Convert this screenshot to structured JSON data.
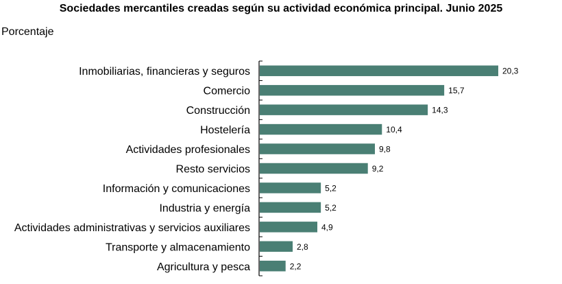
{
  "chart_data": {
    "type": "bar",
    "orientation": "horizontal",
    "title": "Sociedades mercantiles creadas según su actividad económica principal. Junio 2025",
    "ylabel": "Porcentaje",
    "xlabel": "",
    "categories": [
      "Inmobiliarias, financieras y seguros",
      "Comercio",
      "Construcción",
      "Hostelería",
      "Actividades profesionales",
      "Resto servicios",
      "Información y comunicaciones",
      "Industria y energía",
      "Actividades administrativas y servicios auxiliares",
      "Transporte y almacenamiento",
      "Agricultura y pesca"
    ],
    "values": [
      20.3,
      15.7,
      14.3,
      10.4,
      9.8,
      9.2,
      5.2,
      5.2,
      4.9,
      2.8,
      2.2
    ],
    "value_labels": [
      "20,3",
      "15,7",
      "14,3",
      "10,4",
      "9,8",
      "9,2",
      "5,2",
      "5,2",
      "4,9",
      "2,8",
      "2,2"
    ],
    "xlim": [
      0,
      20.3
    ],
    "grid": false,
    "legend": "none",
    "bar_color": "#4a7f74"
  }
}
